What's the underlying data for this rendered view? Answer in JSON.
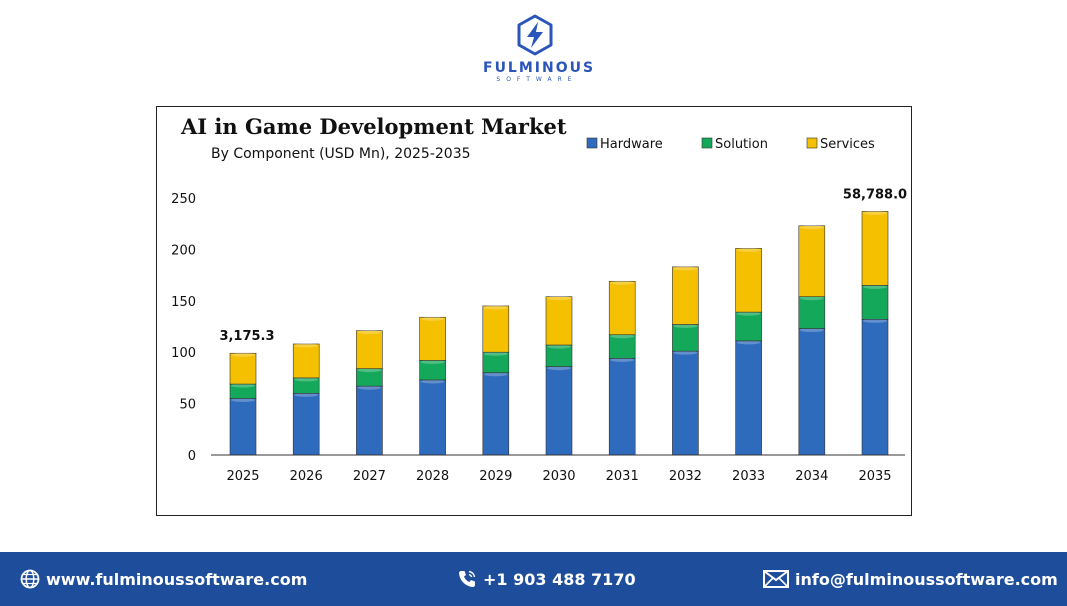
{
  "brand": {
    "name": "FULMINOUS",
    "sub": "SOFTWARE",
    "icon": "lightning-hex-icon"
  },
  "chart_data": {
    "type": "bar",
    "stacked": true,
    "title": "AI in Game Development Market",
    "subtitle": "By Component (USD Mn), 2025-2035",
    "categories": [
      "2025",
      "2026",
      "2027",
      "2028",
      "2029",
      "2030",
      "2031",
      "2032",
      "2033",
      "2034",
      "2035"
    ],
    "series": [
      {
        "name": "Hardware",
        "color": "#2f6bbd",
        "values": [
          55,
          60,
          67,
          73,
          80,
          86,
          94,
          101,
          111,
          123,
          132
        ]
      },
      {
        "name": "Solution",
        "color": "#14a85a",
        "values": [
          14,
          15,
          17,
          19,
          20,
          21,
          23,
          26,
          28,
          31,
          33
        ]
      },
      {
        "name": "Services",
        "color": "#f5c000",
        "values": [
          30,
          33,
          37,
          42,
          45,
          47,
          52,
          56,
          62,
          69,
          72
        ]
      }
    ],
    "yticks": [
      "0",
      "50",
      "100",
      "150",
      "200",
      "250"
    ],
    "ylim": [
      0,
      250
    ],
    "annotations": [
      {
        "category": "2025",
        "text": "3,175.3"
      },
      {
        "category": "2035",
        "text": "58,788.0"
      }
    ],
    "legend_position": "top-right",
    "grid": false
  },
  "footer": {
    "website": "www.fulminoussoftware.com",
    "phone": "+1 903 488 7170",
    "email": "info@fulminoussoftware.com"
  }
}
